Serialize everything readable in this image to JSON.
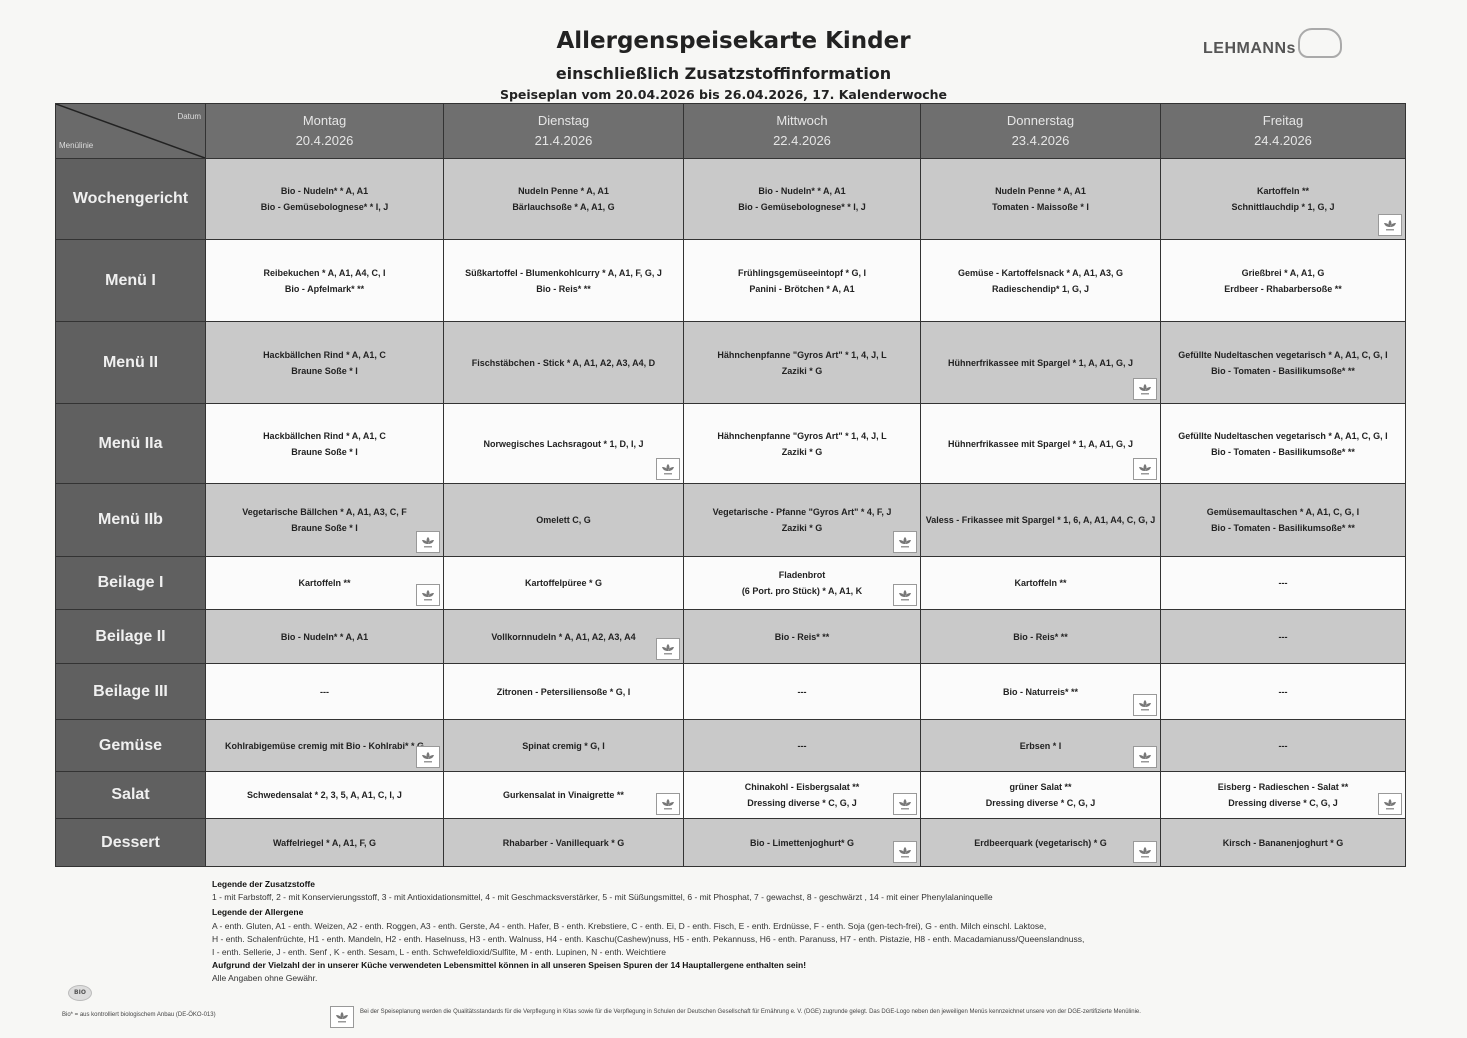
{
  "header": {
    "title": "Allergenspeisekarte Kinder",
    "subtitle": "einschließlich Zusatzstoffinformation",
    "period": "Speiseplan vom 20.04.2026 bis 26.04.2026, 17. Kalenderwoche",
    "logo_text": "LEHMANNs"
  },
  "table": {
    "corner_top": "Datum",
    "corner_bottom": "Menülinie",
    "days": [
      {
        "name": "Montag",
        "date": "20.4.2026"
      },
      {
        "name": "Dienstag",
        "date": "21.4.2026"
      },
      {
        "name": "Mittwoch",
        "date": "22.4.2026"
      },
      {
        "name": "Donnerstag",
        "date": "23.4.2026"
      },
      {
        "name": "Freitag",
        "date": "24.4.2026"
      }
    ],
    "rows": [
      {
        "label": "Wochengericht",
        "shade": "gray",
        "cells": [
          {
            "lines": [
              "Bio - Nudeln* * A, A1",
              "Bio - Gemüsebolognese* * I, J"
            ],
            "dge": false
          },
          {
            "lines": [
              "Nudeln Penne * A, A1",
              "Bärlauchsoße * A, A1, G"
            ],
            "dge": false
          },
          {
            "lines": [
              "Bio - Nudeln* * A, A1",
              "Bio - Gemüsebolognese* * I, J"
            ],
            "dge": false
          },
          {
            "lines": [
              "Nudeln Penne * A, A1",
              "Tomaten - Maissoße * I"
            ],
            "dge": false
          },
          {
            "lines": [
              "Kartoffeln **",
              "Schnittlauchdip * 1, G, J"
            ],
            "dge": true
          }
        ]
      },
      {
        "label": "Menü I",
        "shade": "white",
        "cells": [
          {
            "lines": [
              "Reibekuchen * A, A1, A4, C, I",
              "Bio - Apfelmark* **"
            ],
            "dge": false
          },
          {
            "lines": [
              "Süßkartoffel - Blumenkohlcurry * A, A1, F, G, J",
              "Bio - Reis* **"
            ],
            "dge": false
          },
          {
            "lines": [
              "Frühlingsgemüseeintopf * G, I",
              "Panini - Brötchen * A, A1"
            ],
            "dge": false
          },
          {
            "lines": [
              "Gemüse - Kartoffelsnack * A, A1, A3, G",
              "Radieschendip* 1, G, J"
            ],
            "dge": false
          },
          {
            "lines": [
              "Grießbrei * A, A1, G",
              "Erdbeer - Rhabarbersoße **"
            ],
            "dge": false
          }
        ]
      },
      {
        "label": "Menü II",
        "shade": "gray",
        "cells": [
          {
            "lines": [
              "Hackbällchen Rind * A, A1, C",
              "Braune Soße * I"
            ],
            "dge": false
          },
          {
            "lines": [
              "Fischstäbchen - Stick * A, A1, A2, A3, A4, D"
            ],
            "dge": false
          },
          {
            "lines": [
              "Hähnchenpfanne \"Gyros Art\" * 1, 4, J, L",
              "Zaziki * G"
            ],
            "dge": false
          },
          {
            "lines": [
              "Hühnerfrikassee mit Spargel * 1, A, A1, G, J"
            ],
            "dge": true
          },
          {
            "lines": [
              "Gefüllte Nudeltaschen vegetarisch * A, A1, C, G, I",
              "Bio - Tomaten - Basilikumsoße* **"
            ],
            "dge": false
          }
        ]
      },
      {
        "label": "Menü IIa",
        "shade": "white",
        "cells": [
          {
            "lines": [
              "Hackbällchen Rind * A, A1, C",
              "Braune Soße * I"
            ],
            "dge": false
          },
          {
            "lines": [
              "Norwegisches Lachsragout * 1, D, I, J"
            ],
            "dge": true
          },
          {
            "lines": [
              "Hähnchenpfanne \"Gyros Art\" * 1, 4, J, L",
              "Zaziki * G"
            ],
            "dge": false
          },
          {
            "lines": [
              "Hühnerfrikassee mit Spargel * 1, A, A1, G, J"
            ],
            "dge": true
          },
          {
            "lines": [
              "Gefüllte Nudeltaschen vegetarisch * A, A1, C, G, I",
              "Bio - Tomaten - Basilikumsoße* **"
            ],
            "dge": false
          }
        ]
      },
      {
        "label": "Menü IIb",
        "shade": "gray",
        "cells": [
          {
            "lines": [
              "Vegetarische Bällchen * A, A1, A3, C, F",
              "Braune Soße * I"
            ],
            "dge": true
          },
          {
            "lines": [
              "Omelett C, G"
            ],
            "dge": false
          },
          {
            "lines": [
              "Vegetarische - Pfanne \"Gyros Art\" * 4, F, J",
              "Zaziki * G"
            ],
            "dge": true
          },
          {
            "lines": [
              "Valess - Frikassee mit Spargel * 1, 6, A, A1, A4, C, G, J"
            ],
            "dge": false
          },
          {
            "lines": [
              "Gemüsemaultaschen * A, A1, C, G, I",
              "Bio - Tomaten - Basilikumsoße* **"
            ],
            "dge": false
          }
        ]
      },
      {
        "label": "Beilage I",
        "shade": "white",
        "cells": [
          {
            "lines": [
              "Kartoffeln **"
            ],
            "dge": true
          },
          {
            "lines": [
              "Kartoffelpüree * G"
            ],
            "dge": false
          },
          {
            "lines": [
              "Fladenbrot",
              "(6 Port. pro Stück) * A, A1, K"
            ],
            "dge": true
          },
          {
            "lines": [
              "Kartoffeln **"
            ],
            "dge": false
          },
          {
            "lines": [
              "---"
            ],
            "dge": false
          }
        ]
      },
      {
        "label": "Beilage II",
        "shade": "gray",
        "cells": [
          {
            "lines": [
              "Bio - Nudeln* * A, A1"
            ],
            "dge": false
          },
          {
            "lines": [
              "Vollkornnudeln * A, A1, A2, A3, A4"
            ],
            "dge": true
          },
          {
            "lines": [
              "Bio - Reis* **"
            ],
            "dge": false
          },
          {
            "lines": [
              "Bio - Reis* **"
            ],
            "dge": false
          },
          {
            "lines": [
              "---"
            ],
            "dge": false
          }
        ]
      },
      {
        "label": "Beilage III",
        "shade": "white",
        "cells": [
          {
            "lines": [
              "---"
            ],
            "dge": false
          },
          {
            "lines": [
              "Zitronen - Petersiliensoße * G, I"
            ],
            "dge": false
          },
          {
            "lines": [
              "---"
            ],
            "dge": false
          },
          {
            "lines": [
              "Bio - Naturreis* **"
            ],
            "dge": true
          },
          {
            "lines": [
              "---"
            ],
            "dge": false
          }
        ]
      },
      {
        "label": "Gemüse",
        "shade": "gray",
        "cells": [
          {
            "lines": [
              "Kohlrabigemüse cremig mit Bio - Kohlrabi* * G"
            ],
            "dge": true
          },
          {
            "lines": [
              "Spinat cremig * G, I"
            ],
            "dge": false
          },
          {
            "lines": [
              "---"
            ],
            "dge": false
          },
          {
            "lines": [
              "Erbsen * I"
            ],
            "dge": true
          },
          {
            "lines": [
              "---"
            ],
            "dge": false
          }
        ]
      },
      {
        "label": "Salat",
        "shade": "white",
        "cells": [
          {
            "lines": [
              "Schwedensalat * 2, 3, 5, A, A1, C, I, J"
            ],
            "dge": false
          },
          {
            "lines": [
              "Gurkensalat in Vinaigrette **"
            ],
            "dge": true
          },
          {
            "lines": [
              "Chinakohl - Eisbergsalat **",
              "Dressing diverse * C, G, J"
            ],
            "dge": true
          },
          {
            "lines": [
              "grüner Salat **",
              "Dressing diverse * C, G, J"
            ],
            "dge": false
          },
          {
            "lines": [
              "Eisberg - Radieschen - Salat **",
              "Dressing diverse * C, G, J"
            ],
            "dge": true
          }
        ]
      },
      {
        "label": "Dessert",
        "shade": "gray",
        "cells": [
          {
            "lines": [
              "Waffelriegel * A, A1, F, G"
            ],
            "dge": false
          },
          {
            "lines": [
              "Rhabarber - Vanillequark * G"
            ],
            "dge": false
          },
          {
            "lines": [
              "Bio - Limettenjoghurt* G"
            ],
            "dge": true
          },
          {
            "lines": [
              "Erdbeerquark (vegetarisch) * G"
            ],
            "dge": true
          },
          {
            "lines": [
              "Kirsch - Bananenjoghurt * G"
            ],
            "dge": false
          }
        ]
      }
    ]
  },
  "legend": {
    "additives_title": "Legende der Zusatzstoffe",
    "additives_text": "1 - mit Farbstoff, 2 - mit Konservierungsstoff, 3 - mit Antioxidationsmittel, 4 - mit Geschmacksverstärker, 5 - mit Süßungsmittel, 6 - mit Phosphat, 7 - gewachst, 8 - geschwärzt , 14 - mit einer Phenylalaninquelle",
    "allergens_title": "Legende der Allergene",
    "allergens_line1": "A - enth. Gluten, A1 - enth. Weizen, A2 - enth. Roggen, A3 - enth. Gerste, A4 - enth. Hafer, B - enth. Krebstiere, C - enth. Ei, D - enth. Fisch, E - enth. Erdnüsse, F - enth. Soja (gen-tech-frei), G - enth. Milch einschl. Laktose,",
    "allergens_line2": "H - enth. Schalenfrüchte, H1 - enth. Mandeln, H2 - enth. Haselnuss, H3 - enth. Walnuss, H4 - enth. Kaschu(Cashew)nuss, H5 - enth. Pekannuss, H6 - enth. Paranuss, H7 - enth. Pistazie, H8 - enth. Macadamianuss/Queenslandnuss,",
    "allergens_line3": "I - enth. Sellerie, J - enth. Senf , K - enth. Sesam, L - enth. Schwefeldioxid/Sulfite, M - enth. Lupinen, N - enth. Weichtiere",
    "warning": "Aufgrund der Vielzahl der in unserer Küche verwendeten Lebensmittel können in all unseren Speisen Spuren der 14 Hauptallergene enthalten sein!",
    "disclaimer": "Alle Angaben ohne Gewähr.",
    "bio_logo": "BIO",
    "bio_note": "Bio* = aus kontrolliert biologischem Anbau (DE-ÖKO-013)",
    "dge_note": "Bei der Speiseplanung werden die Qualitätsstandards für die Verpflegung in Kitas sowie für die Verpflegung in Schulen der Deutschen Gesellschaft für Ernährung e. V. (DGE) zugrunde gelegt. Das DGE-Logo neben den jeweiligen Menüs kennzeichnet unsere von der DGE-zertifizierte Menülinie."
  },
  "colors": {
    "header": "#6f6f6f",
    "label_column": "#606060",
    "gray_row": "#c9c9c9",
    "white_row": "#fbfbfb"
  }
}
